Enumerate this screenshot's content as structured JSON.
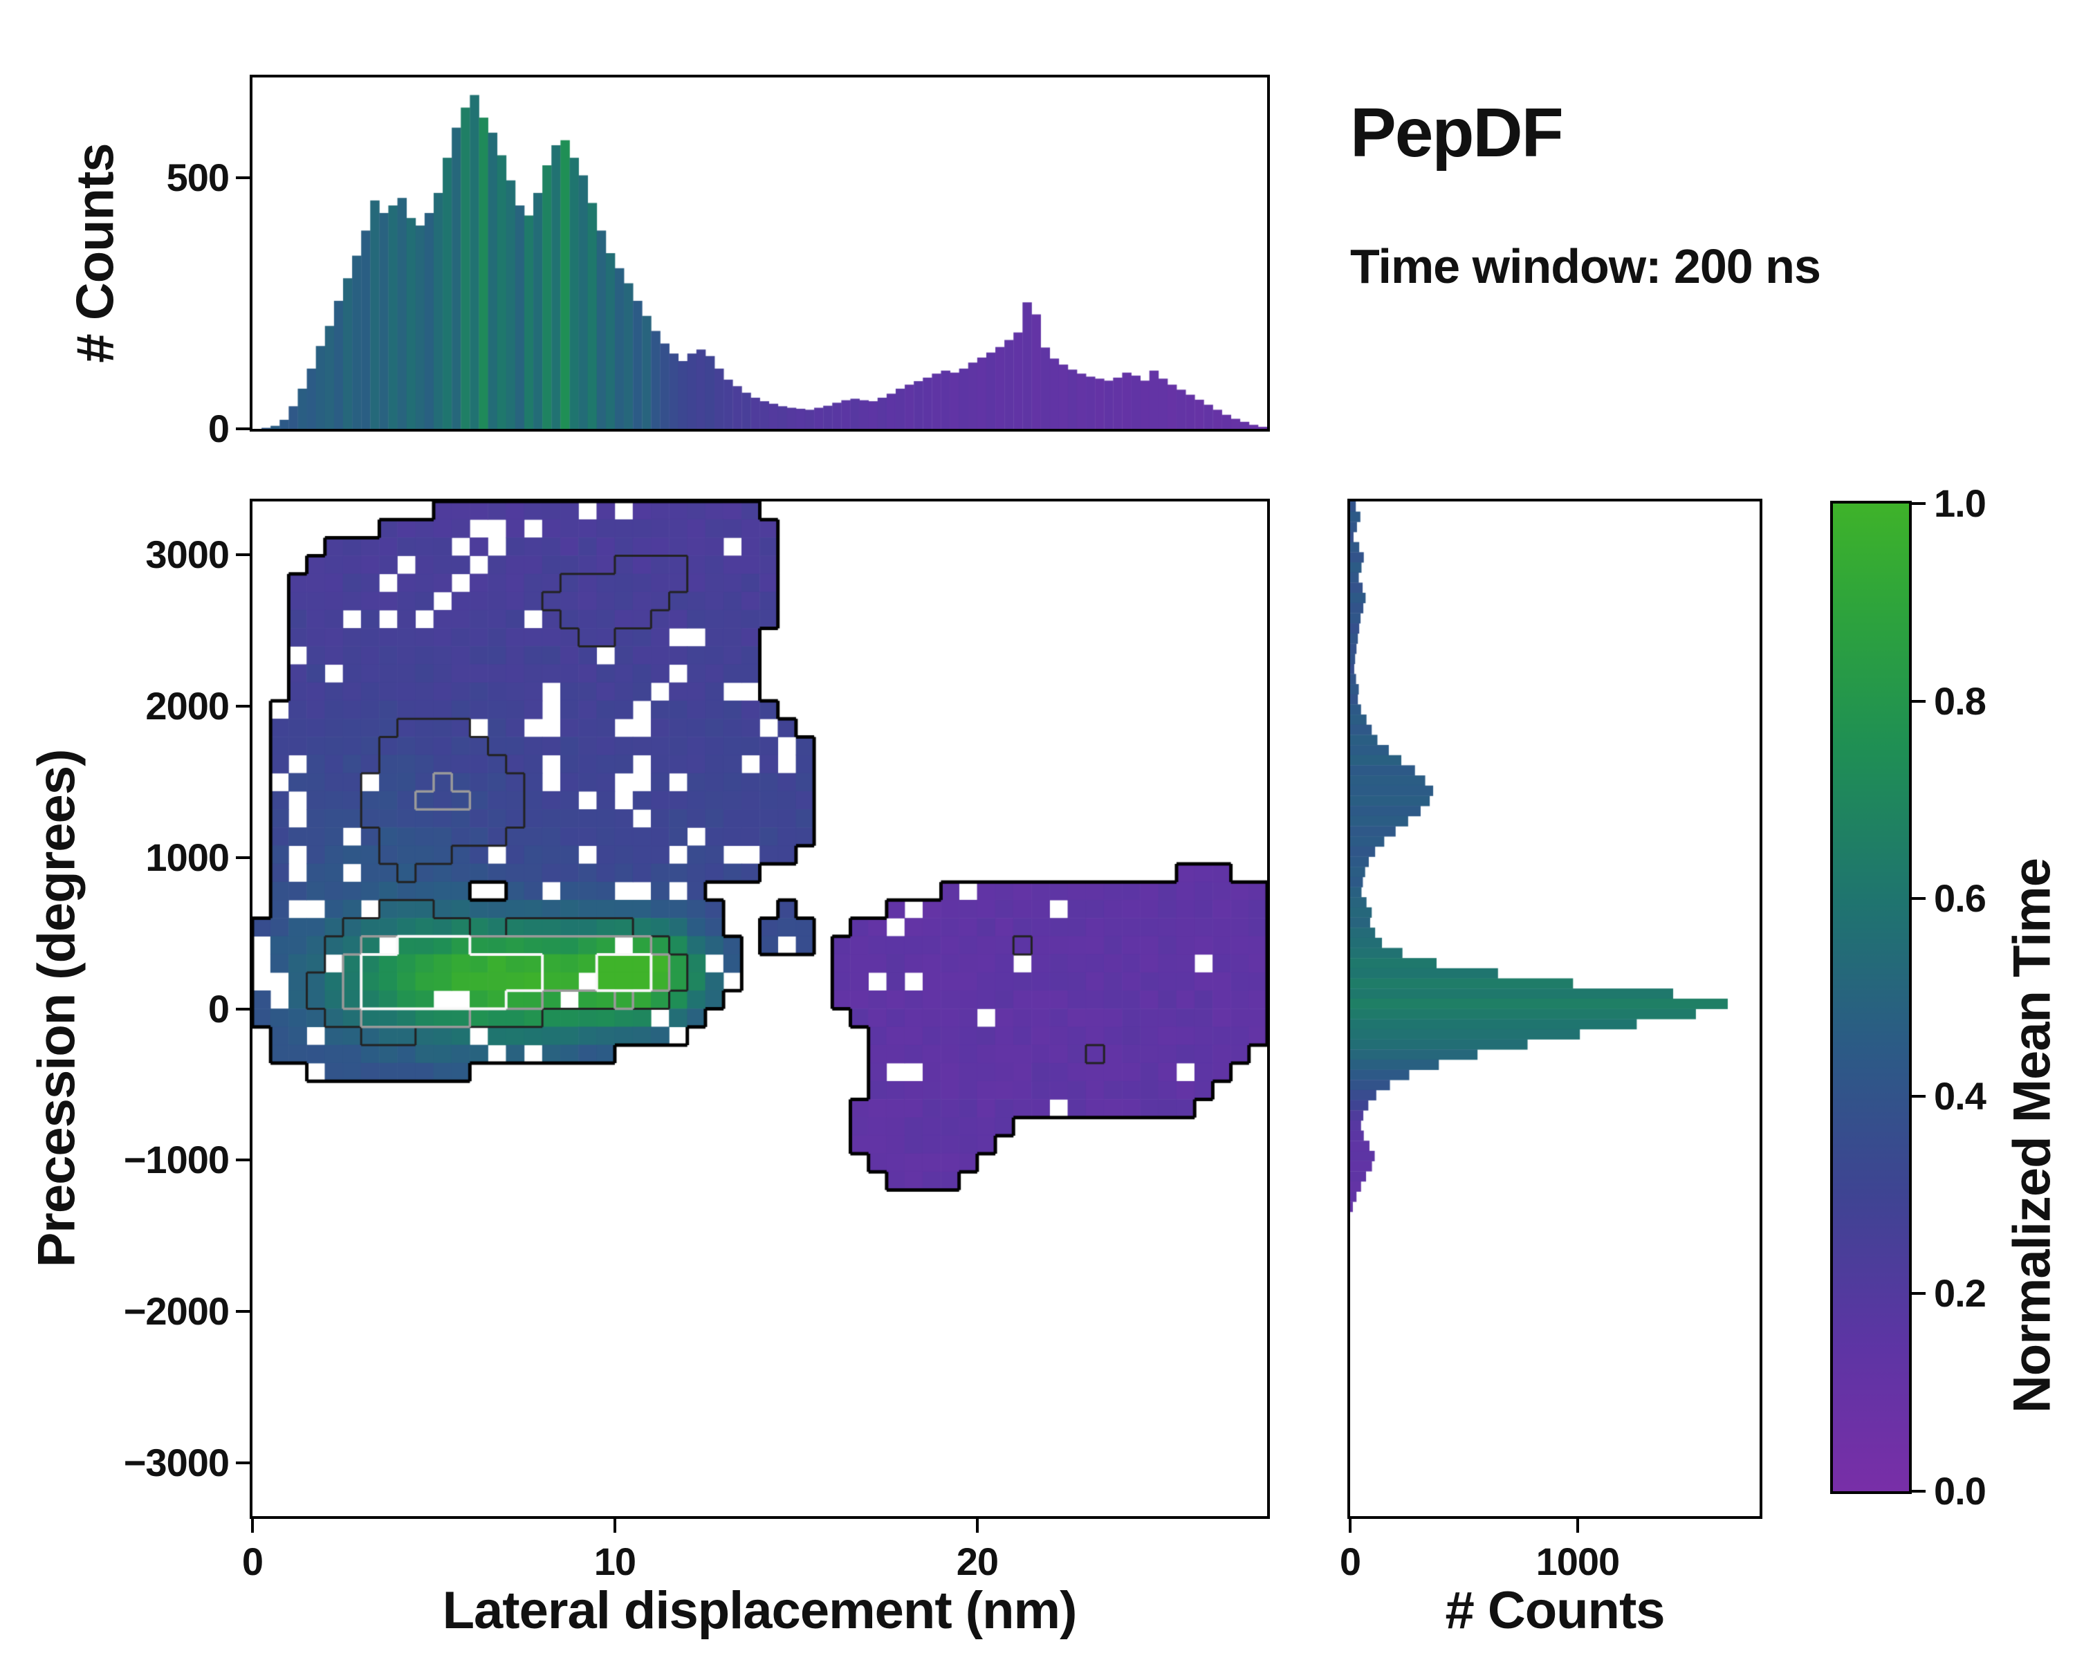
{
  "header": {
    "title": "PepDF",
    "subtitle": "Time window: 200 ns"
  },
  "chart_data": {
    "type": "heatmap",
    "description": "2D histogram of precession vs lateral displacement, colored by normalized mean time, with marginal histograms and contour outlines",
    "colormap": {
      "label": "Normalized Mean Time",
      "ticks": [
        1.0,
        0.8,
        0.6,
        0.4,
        0.2,
        0.0
      ],
      "tick_labels": [
        "1.0",
        "0.8",
        "0.6",
        "0.4",
        "0.2",
        "0.0"
      ],
      "stops": [
        [
          0,
          "#792fa8"
        ],
        [
          0.15,
          "#5d35a4"
        ],
        [
          0.3,
          "#3f4493"
        ],
        [
          0.45,
          "#2c5b86"
        ],
        [
          0.6,
          "#1f756f"
        ],
        [
          0.75,
          "#1f8f55"
        ],
        [
          0.9,
          "#2fa53b"
        ],
        [
          1,
          "#3fb32a"
        ]
      ]
    },
    "main": {
      "xlabel": "Lateral displacement (nm)",
      "ylabel": "Precession (degrees)",
      "xlim": [
        0,
        28
      ],
      "ylim": [
        -3350,
        3350
      ],
      "xticks": [
        0,
        10,
        20
      ],
      "xtick_labels": [
        "0",
        "10",
        "20"
      ],
      "yticks": [
        3000,
        2000,
        1000,
        0,
        -1000,
        -2000,
        -3000
      ],
      "ytick_labels": [
        "3000",
        "2000",
        "1000",
        "0",
        "−1000",
        "−2000",
        "−3000"
      ],
      "grid": {
        "nx": 56,
        "ny": 56
      },
      "density_threshold": 0.25,
      "seed": 7,
      "density_blobs": [
        {
          "x": 6.0,
          "y": 1900,
          "sx": 3.2,
          "sy": 850,
          "a": 0.85
        },
        {
          "x": 9.5,
          "y": 2700,
          "sx": 2.2,
          "sy": 520,
          "a": 0.75
        },
        {
          "x": 5.0,
          "y": 1200,
          "sx": 2.4,
          "sy": 480,
          "a": 0.75
        },
        {
          "x": 12.5,
          "y": 2950,
          "sx": 1.5,
          "sy": 380,
          "a": 0.6
        },
        {
          "x": 13.5,
          "y": 1450,
          "sx": 1.7,
          "sy": 400,
          "a": 0.55
        },
        {
          "x": 7.0,
          "y": 250,
          "sx": 3.2,
          "sy": 320,
          "a": 1.5
        },
        {
          "x": 3.0,
          "y": 50,
          "sx": 1.6,
          "sy": 330,
          "a": 0.9
        },
        {
          "x": 10.8,
          "y": 250,
          "sx": 1.0,
          "sy": 200,
          "a": 1.05
        },
        {
          "x": 5.5,
          "y": 150,
          "sx": 1.2,
          "sy": 160,
          "a": 0.6
        },
        {
          "x": 2.5,
          "y": 2700,
          "sx": 0.9,
          "sy": 250,
          "a": 0.35
        },
        {
          "x": 21.0,
          "y": 250,
          "sx": 2.4,
          "sy": 420,
          "a": 0.7
        },
        {
          "x": 24.5,
          "y": -100,
          "sx": 2.3,
          "sy": 430,
          "a": 0.65
        },
        {
          "x": 18.5,
          "y": -800,
          "sx": 1.5,
          "sy": 330,
          "a": 0.55
        },
        {
          "x": 26.5,
          "y": 550,
          "sx": 1.3,
          "sy": 280,
          "a": 0.5
        },
        {
          "x": 17.5,
          "y": 250,
          "sx": 1.2,
          "sy": 250,
          "a": 0.4
        },
        {
          "x": 14.8,
          "y": 520,
          "sx": 0.45,
          "sy": 110,
          "a": 0.4
        },
        {
          "x": 21.2,
          "y": 500,
          "sx": 0.7,
          "sy": 150,
          "a": 0.35
        },
        {
          "x": 23.0,
          "y": -350,
          "sx": 0.7,
          "sy": 150,
          "a": 0.35
        },
        {
          "x": 7.5,
          "y": 2100,
          "sx": 1.1,
          "sy": 280,
          "a": -0.75
        },
        {
          "x": 6.3,
          "y": 760,
          "sx": 1.0,
          "sy": 200,
          "a": -1.0
        }
      ],
      "value_field": {
        "split": 15.8,
        "left_base": 0.36,
        "left_y_coeff": 3.8e-05,
        "right_base": 0.14,
        "jitter": 0.05,
        "patches": [
          {
            "x": 7.2,
            "y": 200,
            "sx": 3.0,
            "sy": 270,
            "a": 0.62
          },
          {
            "x": 10.8,
            "y": 250,
            "sx": 1.1,
            "sy": 200,
            "a": 0.45
          },
          {
            "x": 3.5,
            "y": 600,
            "sx": 2.0,
            "sy": 700,
            "a": 0.1
          }
        ]
      },
      "contours": [
        {
          "level": 0.25,
          "color": "#000000",
          "width": 5
        },
        {
          "level": 1.0,
          "color": "#222222",
          "width": 3
        },
        {
          "level": 1.35,
          "color": "#9a9a9a",
          "width": 3.5
        },
        {
          "level": 1.6,
          "color": "#f7f7f7",
          "width": 4
        }
      ]
    },
    "top_hist": {
      "ylabel": "# Counts",
      "ylim": [
        0,
        700
      ],
      "yticks": [
        500,
        0
      ],
      "ytick_labels": [
        "500",
        "0"
      ],
      "xlim": [
        0,
        28
      ],
      "counts": [
        0,
        2,
        6,
        18,
        45,
        80,
        120,
        165,
        205,
        255,
        300,
        345,
        395,
        455,
        430,
        445,
        460,
        420,
        405,
        430,
        470,
        540,
        600,
        640,
        665,
        620,
        590,
        545,
        495,
        445,
        425,
        470,
        525,
        565,
        575,
        540,
        505,
        450,
        395,
        350,
        320,
        290,
        255,
        225,
        195,
        170,
        150,
        135,
        150,
        158,
        145,
        120,
        98,
        85,
        72,
        62,
        55,
        50,
        45,
        42,
        40,
        38,
        42,
        46,
        52,
        57,
        60,
        57,
        55,
        62,
        70,
        80,
        88,
        95,
        102,
        110,
        116,
        112,
        120,
        132,
        142,
        152,
        163,
        177,
        192,
        252,
        228,
        162,
        140,
        128,
        118,
        110,
        104,
        100,
        96,
        102,
        112,
        106,
        96,
        116,
        100,
        88,
        78,
        68,
        58,
        48,
        38,
        28,
        20,
        14,
        8,
        4
      ],
      "values": [
        0.45,
        0.42,
        0.46,
        0.44,
        0.43,
        0.47,
        0.45,
        0.48,
        0.5,
        0.46,
        0.52,
        0.48,
        0.47,
        0.53,
        0.49,
        0.55,
        0.5,
        0.56,
        0.52,
        0.48,
        0.55,
        0.6,
        0.52,
        0.66,
        0.58,
        0.72,
        0.55,
        0.62,
        0.57,
        0.5,
        0.63,
        0.55,
        0.68,
        0.58,
        0.75,
        0.6,
        0.55,
        0.62,
        0.5,
        0.56,
        0.48,
        0.52,
        0.45,
        0.5,
        0.42,
        0.38,
        0.35,
        0.32,
        0.3,
        0.28,
        0.3,
        0.27,
        0.26,
        0.24,
        0.25,
        0.22,
        0.22,
        0.2,
        0.21,
        0.19,
        0.18,
        0.19,
        0.17,
        0.18,
        0.17,
        0.16,
        0.18,
        0.16,
        0.15,
        0.17,
        0.15,
        0.16,
        0.14,
        0.16,
        0.15,
        0.14,
        0.15,
        0.13,
        0.15,
        0.14,
        0.13,
        0.15,
        0.13,
        0.14,
        0.13,
        0.14,
        0.12,
        0.14,
        0.13,
        0.12,
        0.14,
        0.12,
        0.13,
        0.11,
        0.13,
        0.12,
        0.11,
        0.13,
        0.11,
        0.12,
        0.12,
        0.1,
        0.12,
        0.11,
        0.1,
        0.12,
        0.1,
        0.11,
        0.1,
        0.11,
        0.09,
        0.1
      ]
    },
    "right_hist": {
      "xlabel": "# Counts",
      "xlim": [
        0,
        1800
      ],
      "xticks": [
        0,
        1000
      ],
      "xtick_labels": [
        "0",
        "1000"
      ],
      "ylim": [
        -3350,
        3350
      ],
      "counts": [
        25,
        45,
        30,
        15,
        40,
        60,
        50,
        38,
        55,
        68,
        58,
        46,
        40,
        34,
        28,
        22,
        18,
        26,
        38,
        34,
        48,
        72,
        95,
        120,
        170,
        225,
        285,
        330,
        365,
        350,
        310,
        255,
        200,
        150,
        110,
        82,
        66,
        56,
        50,
        72,
        95,
        88,
        110,
        140,
        230,
        380,
        650,
        980,
        1420,
        1660,
        1520,
        1260,
        1010,
        780,
        560,
        390,
        260,
        175,
        115,
        80,
        58,
        48,
        60,
        85,
        108,
        96,
        70,
        48,
        28,
        12,
        0,
        0,
        0,
        0,
        0,
        0,
        0,
        0,
        0,
        0,
        0,
        0,
        0,
        0,
        0,
        0,
        0,
        0,
        0,
        0,
        0,
        0,
        0,
        0,
        0,
        0,
        0,
        0,
        0,
        0
      ],
      "values": [
        0.4,
        0.44,
        0.41,
        0.38,
        0.43,
        0.4,
        0.45,
        0.42,
        0.39,
        0.44,
        0.4,
        0.42,
        0.38,
        0.41,
        0.39,
        0.4,
        0.37,
        0.41,
        0.43,
        0.4,
        0.44,
        0.46,
        0.43,
        0.47,
        0.45,
        0.48,
        0.44,
        0.46,
        0.45,
        0.47,
        0.44,
        0.46,
        0.43,
        0.45,
        0.42,
        0.44,
        0.46,
        0.44,
        0.48,
        0.5,
        0.52,
        0.5,
        0.54,
        0.56,
        0.58,
        0.62,
        0.6,
        0.64,
        0.62,
        0.66,
        0.63,
        0.6,
        0.58,
        0.56,
        0.52,
        0.48,
        0.44,
        0.4,
        0.35,
        0.3,
        0.22,
        0.18,
        0.16,
        0.14,
        0.15,
        0.13,
        0.14,
        0.12,
        0.13,
        0.12,
        0,
        0,
        0,
        0,
        0,
        0,
        0,
        0,
        0,
        0,
        0,
        0,
        0,
        0,
        0,
        0,
        0,
        0,
        0,
        0,
        0,
        0,
        0,
        0,
        0,
        0,
        0,
        0,
        0,
        0
      ]
    }
  }
}
